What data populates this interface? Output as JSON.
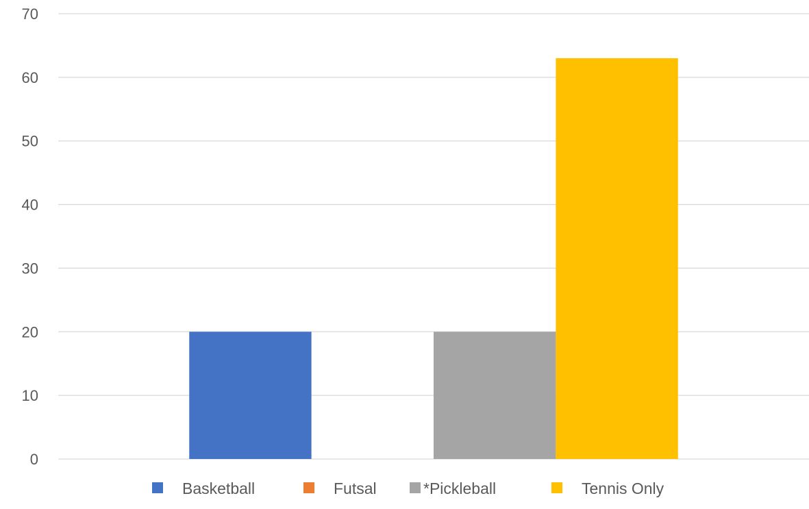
{
  "chart_data": {
    "type": "bar",
    "title": "",
    "xlabel": "",
    "ylabel": "",
    "ylim": [
      0,
      70
    ],
    "yticks": [
      0,
      10,
      20,
      30,
      40,
      50,
      60,
      70
    ],
    "grid": true,
    "legend_position": "bottom",
    "categories": [
      ""
    ],
    "series": [
      {
        "name": "Basketball",
        "values": [
          20
        ],
        "color": "#4472C4"
      },
      {
        "name": "Futsal",
        "values": [
          0
        ],
        "color": "#ED7D31"
      },
      {
        "name": "*Pickleball",
        "values": [
          20
        ],
        "color": "#A5A5A5"
      },
      {
        "name": "Tennis Only",
        "values": [
          63
        ],
        "color": "#FFC000"
      }
    ]
  }
}
